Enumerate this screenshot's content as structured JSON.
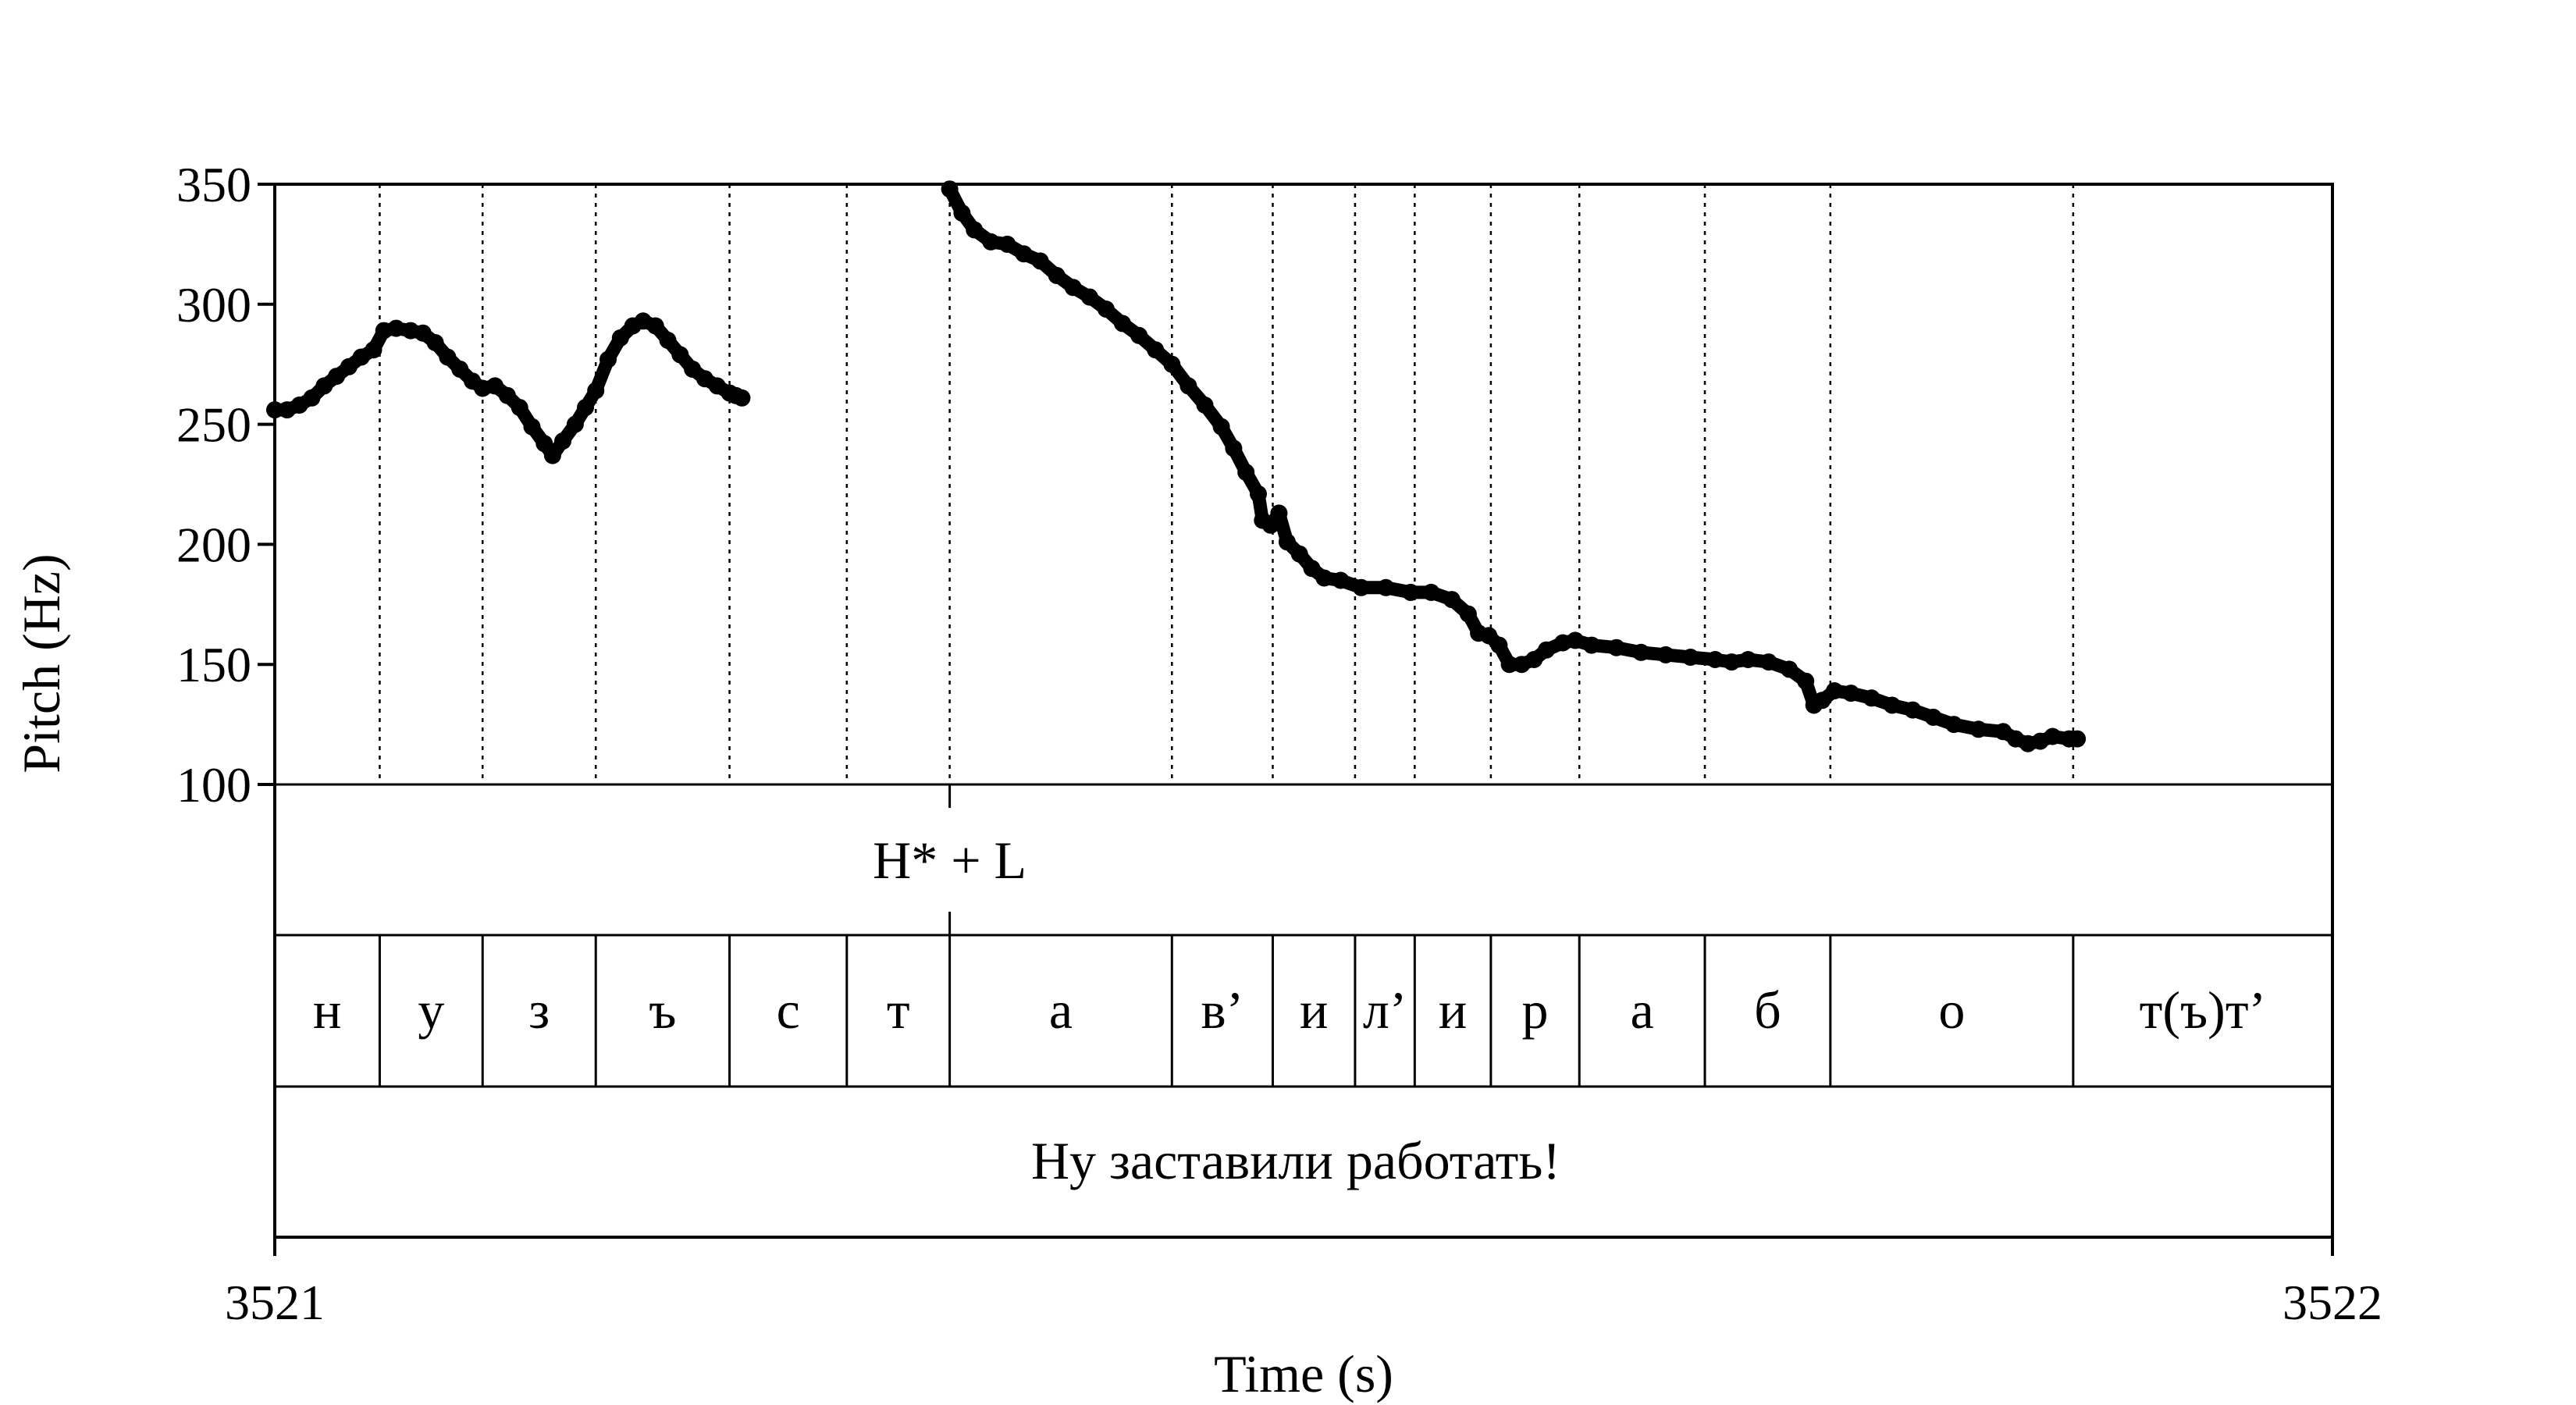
{
  "chart_data": {
    "type": "line",
    "ylabel": "Pitch (Hz)",
    "xlabel": "Time (s)",
    "ylim": [
      100,
      350
    ],
    "yticks": [
      "350",
      "300",
      "250",
      "200",
      "150",
      "100"
    ],
    "xlim": [
      3521,
      3522
    ],
    "xticks": [
      "3521",
      "3522"
    ],
    "boundaries": [
      3521.051,
      3521.101,
      3521.156,
      3521.221,
      3521.278,
      3521.328,
      3521.436,
      3521.485,
      3521.525,
      3521.554,
      3521.591,
      3521.634,
      3521.695,
      3521.756,
      3521.874
    ],
    "segments": [
      {
        "label": "н",
        "t0": 3521.0,
        "t1": 3521.051
      },
      {
        "label": "у",
        "t0": 3521.051,
        "t1": 3521.101
      },
      {
        "label": "з",
        "t0": 3521.101,
        "t1": 3521.156
      },
      {
        "label": "ъ",
        "t0": 3521.156,
        "t1": 3521.221
      },
      {
        "label": "с",
        "t0": 3521.221,
        "t1": 3521.278
      },
      {
        "label": "т",
        "t0": 3521.278,
        "t1": 3521.328
      },
      {
        "label": "а",
        "t0": 3521.328,
        "t1": 3521.436
      },
      {
        "label": "в’",
        "t0": 3521.436,
        "t1": 3521.485
      },
      {
        "label": "и",
        "t0": 3521.485,
        "t1": 3521.525
      },
      {
        "label": "л’",
        "t0": 3521.525,
        "t1": 3521.554
      },
      {
        "label": "и",
        "t0": 3521.554,
        "t1": 3521.591
      },
      {
        "label": "р",
        "t0": 3521.591,
        "t1": 3521.634
      },
      {
        "label": "а",
        "t0": 3521.634,
        "t1": 3521.695
      },
      {
        "label": "б",
        "t0": 3521.695,
        "t1": 3521.756
      },
      {
        "label": "о",
        "t0": 3521.756,
        "t1": 3521.874
      },
      {
        "label": "т(ъ)т’",
        "t0": 3521.874,
        "t1": 3522.0
      }
    ],
    "tones": [
      {
        "label": "H* + L",
        "t": 3521.328
      }
    ],
    "sentence": "Ну заставили работать!",
    "series": [
      {
        "points": [
          [
            3521.0,
            256
          ],
          [
            3521.006,
            256
          ],
          [
            3521.012,
            258
          ],
          [
            3521.018,
            261
          ],
          [
            3521.024,
            266
          ],
          [
            3521.03,
            270
          ],
          [
            3521.036,
            274
          ],
          [
            3521.042,
            278
          ],
          [
            3521.048,
            281
          ],
          [
            3521.053,
            289
          ],
          [
            3521.059,
            290
          ],
          [
            3521.066,
            289
          ],
          [
            3521.072,
            288
          ],
          [
            3521.078,
            284
          ],
          [
            3521.084,
            278
          ],
          [
            3521.09,
            273
          ],
          [
            3521.096,
            268
          ],
          [
            3521.101,
            265
          ],
          [
            3521.107,
            266
          ],
          [
            3521.113,
            262
          ],
          [
            3521.119,
            257
          ],
          [
            3521.125,
            249
          ],
          [
            3521.131,
            242
          ],
          [
            3521.135,
            237
          ],
          [
            3521.14,
            243
          ],
          [
            3521.146,
            250
          ],
          [
            3521.151,
            257
          ],
          [
            3521.156,
            264
          ],
          [
            3521.162,
            277
          ],
          [
            3521.168,
            286
          ],
          [
            3521.174,
            291
          ],
          [
            3521.179,
            293
          ],
          [
            3521.185,
            291
          ],
          [
            3521.191,
            285
          ],
          [
            3521.197,
            279
          ],
          [
            3521.203,
            273
          ],
          [
            3521.209,
            269
          ],
          [
            3521.215,
            266
          ],
          [
            3521.221,
            263
          ],
          [
            3521.227,
            261
          ],
          [
            3521.224,
            262
          ]
        ]
      },
      {
        "points": [
          [
            3521.328,
            348
          ],
          [
            3521.334,
            338
          ],
          [
            3521.34,
            331
          ],
          [
            3521.348,
            326
          ],
          [
            3521.356,
            325
          ],
          [
            3521.364,
            321
          ],
          [
            3521.372,
            318
          ],
          [
            3521.38,
            312
          ],
          [
            3521.388,
            307
          ],
          [
            3521.396,
            303
          ],
          [
            3521.404,
            298
          ],
          [
            3521.412,
            292
          ],
          [
            3521.42,
            287
          ],
          [
            3521.428,
            281
          ],
          [
            3521.436,
            275
          ],
          [
            3521.444,
            266
          ],
          [
            3521.452,
            258
          ],
          [
            3521.46,
            249
          ],
          [
            3521.466,
            240
          ],
          [
            3521.472,
            230
          ],
          [
            3521.478,
            221
          ],
          [
            3521.48,
            210
          ],
          [
            3521.484,
            208
          ],
          [
            3521.488,
            213
          ],
          [
            3521.492,
            201
          ],
          [
            3521.498,
            196
          ],
          [
            3521.504,
            190
          ],
          [
            3521.51,
            186
          ],
          [
            3521.518,
            185
          ],
          [
            3521.528,
            182
          ],
          [
            3521.54,
            182
          ],
          [
            3521.552,
            180
          ],
          [
            3521.562,
            180
          ],
          [
            3521.572,
            177
          ],
          [
            3521.58,
            171
          ],
          [
            3521.585,
            163
          ],
          [
            3521.59,
            162
          ],
          [
            3521.595,
            158
          ],
          [
            3521.6,
            150
          ],
          [
            3521.606,
            150
          ],
          [
            3521.612,
            152
          ],
          [
            3521.618,
            156
          ],
          [
            3521.626,
            159
          ],
          [
            3521.632,
            160
          ],
          [
            3521.64,
            158
          ],
          [
            3521.652,
            157
          ],
          [
            3521.664,
            155
          ],
          [
            3521.676,
            154
          ],
          [
            3521.688,
            153
          ],
          [
            3521.7,
            152
          ],
          [
            3521.708,
            151
          ],
          [
            3521.716,
            152
          ],
          [
            3521.726,
            151
          ],
          [
            3521.736,
            148
          ],
          [
            3521.744,
            143
          ],
          [
            3521.748,
            133
          ],
          [
            3521.752,
            135
          ],
          [
            3521.758,
            139
          ],
          [
            3521.766,
            138
          ],
          [
            3521.776,
            136
          ],
          [
            3521.786,
            133
          ],
          [
            3521.796,
            131
          ],
          [
            3521.806,
            128
          ],
          [
            3521.816,
            125
          ],
          [
            3521.828,
            123
          ],
          [
            3521.84,
            122
          ],
          [
            3521.846,
            119
          ],
          [
            3521.852,
            117
          ],
          [
            3521.858,
            118
          ],
          [
            3521.864,
            120
          ],
          [
            3521.872,
            119
          ],
          [
            3521.876,
            119
          ]
        ]
      }
    ]
  }
}
